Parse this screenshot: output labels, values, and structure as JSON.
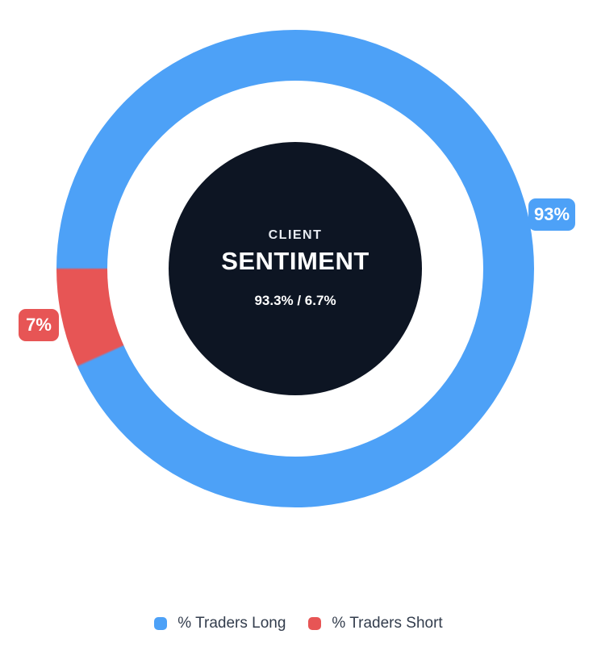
{
  "center": {
    "kicker": "CLIENT",
    "title": "SENTIMENT",
    "ratio": "93.3% / 6.7%"
  },
  "callouts": {
    "long": "93%",
    "short": "7%"
  },
  "legend": {
    "long_label": "% Traders Long",
    "short_label": "% Traders Short"
  },
  "colors": {
    "long": "#4DA1F7",
    "short": "#E75555",
    "center_disc": "#0D1523",
    "legend_text": "#333D4D",
    "background": "#FFFFFF"
  },
  "chart_data": {
    "type": "pie",
    "subtype": "doughnut",
    "title": "Client Sentiment",
    "labels": [
      "% Traders Long",
      "% Traders Short"
    ],
    "values": [
      93.3,
      6.7
    ],
    "colors": [
      "#4DA1F7",
      "#E75555"
    ],
    "data_labels": [
      "93%",
      "7%"
    ],
    "center_text": [
      "CLIENT",
      "SENTIMENT",
      "93.3% / 6.7%"
    ],
    "legend_position": "bottom",
    "layout": "short segment sits at the 9 o'clock position sweeping down-clockwise; long segment covers the remainder; callout badges at each segment mid-angle"
  }
}
